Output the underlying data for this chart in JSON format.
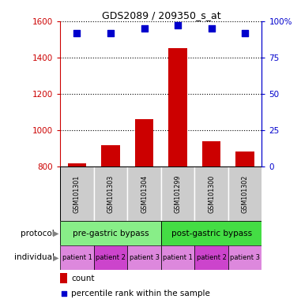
{
  "title": "GDS2089 / 209350_s_at",
  "samples": [
    "GSM101301",
    "GSM101303",
    "GSM101304",
    "GSM101299",
    "GSM101300",
    "GSM101302"
  ],
  "counts": [
    820,
    920,
    1060,
    1450,
    940,
    885
  ],
  "percentile_ranks": [
    92,
    92,
    95,
    97,
    95,
    92
  ],
  "ylim_left": [
    800,
    1600
  ],
  "yticks_left": [
    800,
    1000,
    1200,
    1400,
    1600
  ],
  "yticks_right": [
    0,
    25,
    50,
    75,
    100
  ],
  "ylim_right": [
    0,
    100
  ],
  "bar_color": "#cc0000",
  "dot_color": "#0000cc",
  "protocol_labels": [
    "pre-gastric bypass",
    "post-gastric bypass"
  ],
  "protocol_colors": [
    "#88ee88",
    "#44dd44"
  ],
  "individual_labels": [
    "patient 1",
    "patient 2",
    "patient 3",
    "patient 1",
    "patient 2",
    "patient 3"
  ],
  "individual_colors": [
    "#dd88dd",
    "#cc44cc",
    "#dd88dd",
    "#dd88dd",
    "#cc44cc",
    "#dd88dd"
  ],
  "sample_bg_color": "#cccccc",
  "legend_count_color": "#cc0000",
  "legend_pct_color": "#0000cc",
  "left_axis_color": "#cc0000",
  "right_axis_color": "#0000cc",
  "grid_color": "#000000"
}
